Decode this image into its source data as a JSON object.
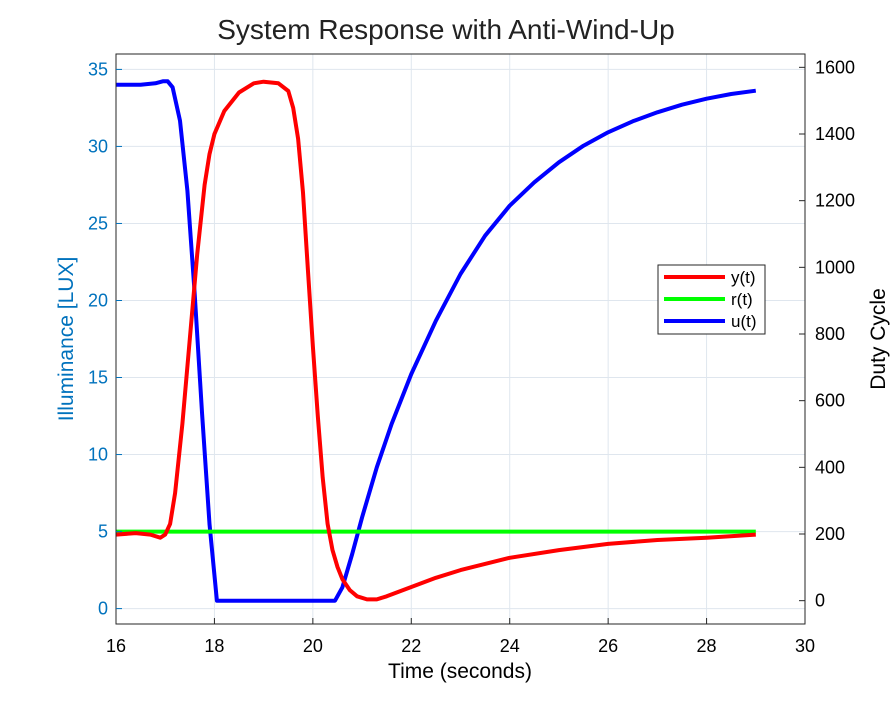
{
  "chart_data": {
    "type": "line",
    "title": "System Response with Anti-Wind-Up",
    "xlabel": "Time (seconds)",
    "ylabel_left": "Illuminance [LUX]",
    "ylabel_right": "Duty Cycle",
    "xlim": [
      16,
      30
    ],
    "ylim_left": [
      -1,
      36
    ],
    "ylim_right": [
      -70,
      1640
    ],
    "x_ticks": [
      "16",
      "18",
      "20",
      "22",
      "24",
      "26",
      "28",
      "30"
    ],
    "y_left_ticks": [
      "0",
      "5",
      "10",
      "15",
      "20",
      "25",
      "30",
      "35"
    ],
    "y_right_ticks": [
      "0",
      "200",
      "400",
      "600",
      "800",
      "1000",
      "1200",
      "1400",
      "1600"
    ],
    "grid": true,
    "legend_position": "right",
    "colors": {
      "left_axis": "#0072bd",
      "right_axis": "#000000",
      "grid": "#dfe6ee",
      "y": "#ff0000",
      "r": "#00ff00",
      "u": "#0000ff"
    },
    "series": [
      {
        "name": "y(t)",
        "axis": "left",
        "color": "#ff0000",
        "x": [
          16.0,
          16.4,
          16.7,
          16.9,
          17.0,
          17.1,
          17.2,
          17.35,
          17.5,
          17.65,
          17.8,
          17.9,
          18.0,
          18.2,
          18.5,
          18.8,
          19.0,
          19.3,
          19.5,
          19.6,
          19.7,
          19.8,
          19.9,
          20.0,
          20.1,
          20.2,
          20.3,
          20.4,
          20.5,
          20.6,
          20.75,
          20.9,
          21.1,
          21.3,
          21.5,
          22.0,
          22.5,
          23.0,
          24.0,
          25.0,
          26.0,
          27.0,
          28.0,
          29.0
        ],
        "values": [
          4.8,
          4.9,
          4.8,
          4.6,
          4.8,
          5.5,
          7.5,
          12.0,
          17.5,
          23.0,
          27.5,
          29.5,
          30.8,
          32.3,
          33.5,
          34.1,
          34.2,
          34.1,
          33.6,
          32.5,
          30.5,
          27.0,
          22.0,
          17.0,
          12.5,
          8.5,
          5.5,
          3.8,
          2.7,
          1.9,
          1.2,
          0.8,
          0.6,
          0.6,
          0.8,
          1.4,
          2.0,
          2.5,
          3.3,
          3.8,
          4.2,
          4.45,
          4.6,
          4.8
        ]
      },
      {
        "name": "r(t)",
        "axis": "left",
        "color": "#00ff00",
        "x": [
          16.0,
          29.0
        ],
        "values": [
          5.0,
          5.0
        ]
      },
      {
        "name": "u(t)",
        "axis": "right",
        "color": "#0000ff",
        "x": [
          16.0,
          16.5,
          16.8,
          16.95,
          17.05,
          17.15,
          17.3,
          17.45,
          17.6,
          17.75,
          17.9,
          18.05,
          18.5,
          19.0,
          20.0,
          20.45,
          20.6,
          20.8,
          21.0,
          21.3,
          21.6,
          22.0,
          22.5,
          23.0,
          23.5,
          24.0,
          24.5,
          25.0,
          25.5,
          26.0,
          26.5,
          27.0,
          27.5,
          28.0,
          28.5,
          29.0
        ],
        "values": [
          1548,
          1548,
          1552,
          1558,
          1558,
          1540,
          1440,
          1230,
          920,
          560,
          230,
          0,
          0,
          0,
          0,
          0,
          40,
          140,
          250,
          400,
          530,
          680,
          840,
          980,
          1095,
          1185,
          1255,
          1315,
          1365,
          1405,
          1438,
          1465,
          1488,
          1506,
          1520,
          1530
        ]
      }
    ]
  }
}
